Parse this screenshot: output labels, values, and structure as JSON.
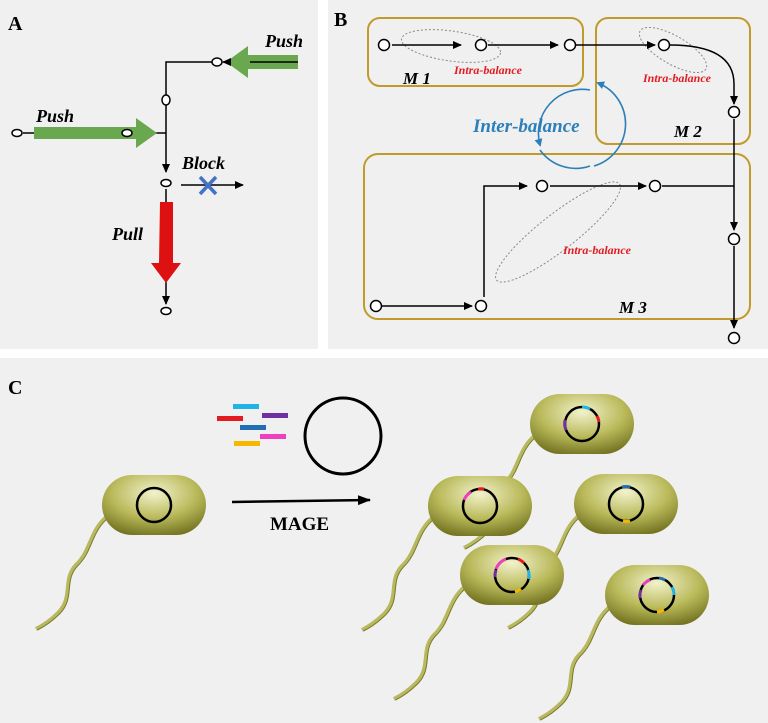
{
  "panels": {
    "a": "A",
    "b": "B",
    "c": "C"
  },
  "panel_a": {
    "push_left": "Push",
    "push_top": "Push",
    "block": "Block",
    "pull": "Pull"
  },
  "panel_b": {
    "m1": "M 1",
    "m2": "M 2",
    "m3": "M 3",
    "intra_1": "Intra-balance",
    "intra_2": "Intra-balance",
    "intra_3": "Intra-balance",
    "inter": "Inter-balance"
  },
  "panel_c": {
    "mage": "MAGE"
  },
  "colors": {
    "push_green": "#6aa84f",
    "pull_red": "#dd1111",
    "block_blue": "#4472c4",
    "module_box": "#c09a2a",
    "intra_text": "#e21b23",
    "inter_text": "#2c7fb8",
    "cell_body": "#a8a83a",
    "oligo_cyan": "#1fb3e6",
    "oligo_purple": "#7030a0",
    "oligo_red": "#e21b23",
    "oligo_blue": "#1f6fb2",
    "oligo_magenta": "#ee3fbe",
    "oligo_yellow": "#f5b800"
  }
}
